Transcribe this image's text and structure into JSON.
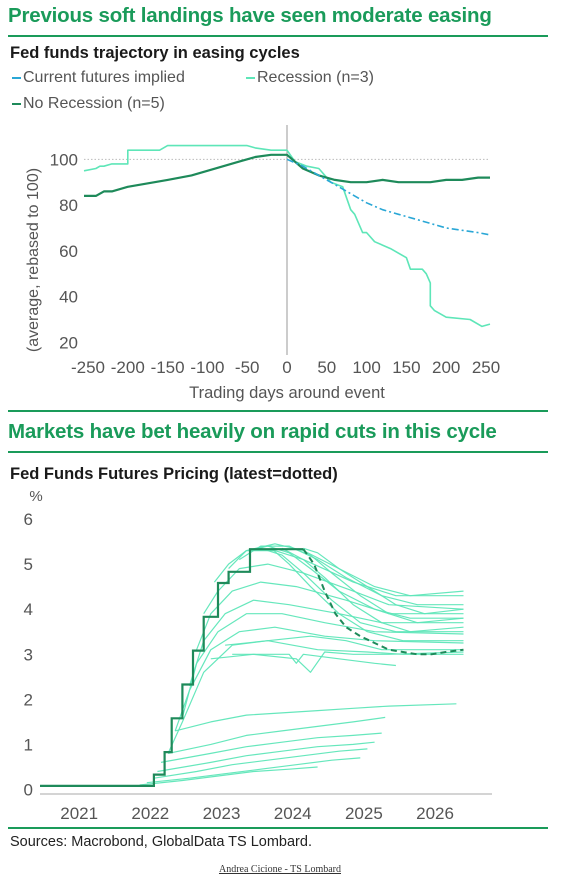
{
  "colors": {
    "accent": "#1a9b5a",
    "recession": "#5ee6b8",
    "no_recession": "#1e8a5a",
    "futures": "#2aa7d6",
    "rule": "#1a9b5a"
  },
  "section1": {
    "title": "Previous soft landings have seen moderate easing"
  },
  "section2": {
    "title": "Markets have bet heavily on rapid cuts in this cycle"
  },
  "source": "Sources: Macrobond, GlobalData TS Lombard.",
  "credit": "Andrea Cicione - TS Lombard",
  "chart_data": [
    {
      "type": "line",
      "title": "Fed funds trajectory in easing cycles",
      "xlabel": "Trading days around event",
      "ylabel": "(average, rebased to 100)",
      "xlim": [
        -255,
        255
      ],
      "ylim": [
        18,
        115
      ],
      "xticks": [
        "-250",
        "-200",
        "-150",
        "-100",
        "-50",
        "0",
        "50",
        "100",
        "150",
        "200",
        "250"
      ],
      "xtick_values": [
        -250,
        -200,
        -150,
        -100,
        -50,
        0,
        50,
        100,
        150,
        200,
        250
      ],
      "yticks": [
        20,
        40,
        60,
        80,
        100
      ],
      "reference_line_y": 100,
      "legend": [
        "Current futures implied",
        "Recession (n=3)",
        "No Recession (n=5)"
      ],
      "series": [
        {
          "name": "Recession (n=3)",
          "color": "#5ee6b8",
          "x": [
            -255,
            -240,
            -235,
            -230,
            -220,
            -200,
            -200,
            -160,
            -150,
            -100,
            -80,
            -60,
            -50,
            -40,
            -20,
            0,
            10,
            25,
            40,
            55,
            70,
            80,
            85,
            95,
            100,
            110,
            130,
            150,
            155,
            170,
            175,
            180,
            180,
            185,
            200,
            230,
            245,
            255
          ],
          "y": [
            95,
            96,
            97,
            97,
            98,
            98,
            104,
            104,
            106,
            106,
            106,
            106,
            106,
            105,
            104,
            104,
            99,
            97,
            96,
            90,
            88,
            78,
            76,
            68,
            68,
            64,
            61,
            57,
            52,
            52,
            50,
            46,
            36,
            34,
            31,
            30,
            27,
            28
          ]
        },
        {
          "name": "No Recession (n=5)",
          "color": "#1e8a5a",
          "x": [
            -255,
            -240,
            -230,
            -220,
            -200,
            -150,
            -120,
            -100,
            -80,
            -60,
            -40,
            -20,
            0,
            20,
            40,
            60,
            80,
            100,
            120,
            140,
            160,
            180,
            200,
            220,
            240,
            255
          ],
          "y": [
            84,
            84,
            86,
            86,
            88,
            91,
            93,
            95,
            97,
            99,
            101,
            102,
            102,
            96,
            93,
            91,
            90,
            90,
            91,
            90,
            90,
            90,
            91,
            91,
            92,
            92
          ]
        },
        {
          "name": "Current futures implied",
          "color": "#2aa7d6",
          "dashed": true,
          "x": [
            0,
            20,
            40,
            60,
            80,
            100,
            120,
            140,
            160,
            180,
            200,
            220,
            240,
            255
          ],
          "y": [
            100,
            97,
            93,
            89,
            85,
            81,
            78,
            76,
            74,
            72,
            70,
            69,
            68,
            67
          ]
        }
      ]
    },
    {
      "type": "line",
      "title": "Fed Funds Futures Pricing (latest=dotted)",
      "xlabel": "",
      "ylabel": "%",
      "xlim": [
        2020.6,
        2026.95
      ],
      "ylim": [
        -0.1,
        6.2
      ],
      "xticks": [
        "2021",
        "2022",
        "2023",
        "2024",
        "2025",
        "2026"
      ],
      "xtick_values": [
        2021.15,
        2022.15,
        2023.15,
        2024.15,
        2025.15,
        2026.15
      ],
      "yticks": [
        "0",
        "1",
        "2",
        "3",
        "4",
        "5",
        "6"
      ],
      "ytick_values": [
        0,
        1,
        2,
        3,
        4,
        5,
        6
      ],
      "futures_color": "#5ee6b8",
      "effective_color": "#1e8a5a",
      "effective_rate": {
        "name": "Effective fed funds",
        "x": [
          2020.6,
          2021.9,
          2022.2,
          2022.35,
          2022.45,
          2022.6,
          2022.75,
          2022.9,
          2023.1,
          2023.25,
          2023.55,
          2024.3
        ],
        "y": [
          0.08,
          0.08,
          0.33,
          0.83,
          1.58,
          2.33,
          3.08,
          3.83,
          4.58,
          4.83,
          5.33,
          5.33
        ]
      },
      "latest_curve": {
        "name": "latest",
        "x": [
          2024.3,
          2024.45,
          2024.6,
          2024.75,
          2024.9,
          2025.1,
          2025.3,
          2025.5,
          2025.7,
          2025.9,
          2026.1,
          2026.3,
          2026.55
        ],
        "y": [
          5.33,
          5.0,
          4.4,
          3.9,
          3.6,
          3.4,
          3.25,
          3.1,
          3.05,
          3.0,
          3.0,
          3.05,
          3.1
        ]
      },
      "futures_curves": [
        {
          "x": [
            2022.4,
            2022.6,
            2022.9,
            2023.3,
            2023.8,
            2024.5,
            2025.2,
            2025.7,
            2026.55
          ],
          "y": [
            0.8,
            1.5,
            2.6,
            3.2,
            3.3,
            3.1,
            3.05,
            3.0,
            3.0
          ]
        },
        {
          "x": [
            2022.5,
            2022.7,
            2023.0,
            2023.4,
            2023.9,
            2024.6,
            2025.3,
            2026.55
          ],
          "y": [
            1.3,
            2.2,
            3.1,
            3.5,
            3.6,
            3.4,
            3.3,
            3.25
          ]
        },
        {
          "x": [
            2022.6,
            2022.8,
            2023.1,
            2023.5,
            2024.0,
            2024.6,
            2025.3,
            2026.55
          ],
          "y": [
            1.6,
            2.8,
            3.5,
            3.9,
            3.9,
            3.7,
            3.5,
            3.45
          ]
        },
        {
          "x": [
            2022.7,
            2022.9,
            2023.2,
            2023.6,
            2024.1,
            2024.8,
            2025.4,
            2026.55
          ],
          "y": [
            2.3,
            3.3,
            3.9,
            4.2,
            4.1,
            3.9,
            3.7,
            3.7
          ]
        },
        {
          "x": [
            2022.8,
            2023.0,
            2023.3,
            2023.7,
            2024.2,
            2024.9,
            2025.5,
            2026.55
          ],
          "y": [
            3.1,
            3.9,
            4.4,
            4.6,
            4.5,
            4.2,
            3.9,
            3.9
          ]
        },
        {
          "x": [
            2022.9,
            2023.1,
            2023.4,
            2023.8,
            2024.3,
            2025.0,
            2025.5,
            2026.55
          ],
          "y": [
            3.9,
            4.4,
            4.9,
            5.0,
            4.8,
            4.4,
            4.1,
            4.0
          ]
        },
        {
          "x": [
            2023.05,
            2023.25,
            2023.5,
            2023.9,
            2024.3,
            2025.0,
            2025.6,
            2026.55
          ],
          "y": [
            4.6,
            5.0,
            5.3,
            5.3,
            5.1,
            4.6,
            4.3,
            4.3
          ]
        },
        {
          "x": [
            2023.25,
            2023.5,
            2023.9,
            2024.3,
            2024.8,
            2025.3,
            2025.8,
            2026.55
          ],
          "y": [
            4.9,
            5.3,
            5.45,
            5.3,
            4.9,
            4.5,
            4.3,
            4.4
          ]
        },
        {
          "x": [
            2023.4,
            2023.7,
            2024.1,
            2024.5,
            2024.9,
            2025.4,
            2025.9,
            2026.55
          ],
          "y": [
            5.1,
            5.4,
            5.4,
            5.1,
            4.7,
            4.3,
            4.1,
            4.1
          ]
        },
        {
          "x": [
            2023.55,
            2023.8,
            2024.1,
            2024.4,
            2024.8,
            2025.3,
            2025.8,
            2026.55
          ],
          "y": [
            5.3,
            5.4,
            5.25,
            4.9,
            4.4,
            4.0,
            3.8,
            3.8
          ]
        },
        {
          "x": [
            2023.7,
            2024.0,
            2024.3,
            2024.7,
            2025.1,
            2025.6,
            2026.55
          ],
          "y": [
            5.35,
            5.2,
            4.8,
            4.2,
            3.7,
            3.5,
            3.5
          ]
        },
        {
          "x": [
            2023.85,
            2024.1,
            2024.4,
            2024.8,
            2025.2,
            2025.7,
            2026.55
          ],
          "y": [
            5.35,
            5.0,
            4.5,
            3.9,
            3.5,
            3.3,
            3.3
          ]
        },
        {
          "x": [
            2024.0,
            2024.3,
            2024.6,
            2025.0,
            2025.4,
            2025.8,
            2026.55
          ],
          "y": [
            5.35,
            5.1,
            4.7,
            4.1,
            3.7,
            3.5,
            3.6
          ]
        },
        {
          "x": [
            2024.15,
            2024.4,
            2024.7,
            2025.1,
            2025.5,
            2025.9,
            2026.55
          ],
          "y": [
            5.35,
            5.2,
            4.8,
            4.3,
            3.9,
            3.7,
            3.8
          ]
        },
        {
          "x": [
            2024.3,
            2024.5,
            2024.8,
            2025.2,
            2025.6,
            2026.0,
            2026.55
          ],
          "y": [
            5.35,
            5.25,
            4.9,
            4.5,
            4.1,
            3.9,
            4.0
          ]
        },
        {
          "x": [
            2023.3,
            2023.8,
            2024.1,
            2024.2,
            2024.3,
            2024.8,
            2025.3,
            2025.6
          ],
          "y": [
            3.0,
            3.0,
            3.0,
            2.8,
            3.0,
            2.9,
            2.8,
            2.75
          ]
        },
        {
          "x": [
            2023.0,
            2023.6,
            2024.2,
            2024.4,
            2024.6,
            2025.0,
            2025.5,
            2026.55
          ],
          "y": [
            2.9,
            3.0,
            2.9,
            2.6,
            3.05,
            3.0,
            3.0,
            3.05
          ]
        },
        {
          "x": [
            2023.2,
            2023.8,
            2024.4,
            2024.9,
            2025.4,
            2026.55
          ],
          "y": [
            3.2,
            3.3,
            3.4,
            3.3,
            3.1,
            3.1
          ]
        },
        {
          "x": [
            2022.5,
            2023.0,
            2023.5,
            2024.0,
            2024.5,
            2025.0,
            2025.5,
            2026.45
          ],
          "y": [
            1.3,
            1.5,
            1.65,
            1.7,
            1.75,
            1.8,
            1.85,
            1.9
          ]
        },
        {
          "x": [
            2022.4,
            2023.0,
            2023.5,
            2024.0,
            2024.5,
            2025.0,
            2025.45
          ],
          "y": [
            0.8,
            1.0,
            1.2,
            1.3,
            1.4,
            1.5,
            1.6
          ]
        },
        {
          "x": [
            2022.3,
            2023.0,
            2023.5,
            2024.0,
            2024.5,
            2025.0,
            2025.4
          ],
          "y": [
            0.6,
            0.8,
            0.95,
            1.05,
            1.15,
            1.2,
            1.25
          ]
        },
        {
          "x": [
            2022.25,
            2023.0,
            2023.5,
            2024.0,
            2024.5,
            2025.0,
            2025.3
          ],
          "y": [
            0.4,
            0.6,
            0.75,
            0.85,
            0.95,
            1.0,
            1.05
          ]
        },
        {
          "x": [
            2022.2,
            2022.8,
            2023.3,
            2023.8,
            2024.3,
            2024.8,
            2025.2
          ],
          "y": [
            0.25,
            0.4,
            0.55,
            0.65,
            0.75,
            0.85,
            0.9
          ]
        },
        {
          "x": [
            2022.1,
            2022.7,
            2023.2,
            2023.7,
            2024.2,
            2024.7,
            2025.1
          ],
          "y": [
            0.15,
            0.25,
            0.35,
            0.45,
            0.55,
            0.65,
            0.7
          ]
        },
        {
          "x": [
            2022.0,
            2022.6,
            2023.1,
            2023.6,
            2024.1,
            2024.5
          ],
          "y": [
            0.1,
            0.2,
            0.3,
            0.4,
            0.45,
            0.5
          ]
        }
      ]
    }
  ]
}
